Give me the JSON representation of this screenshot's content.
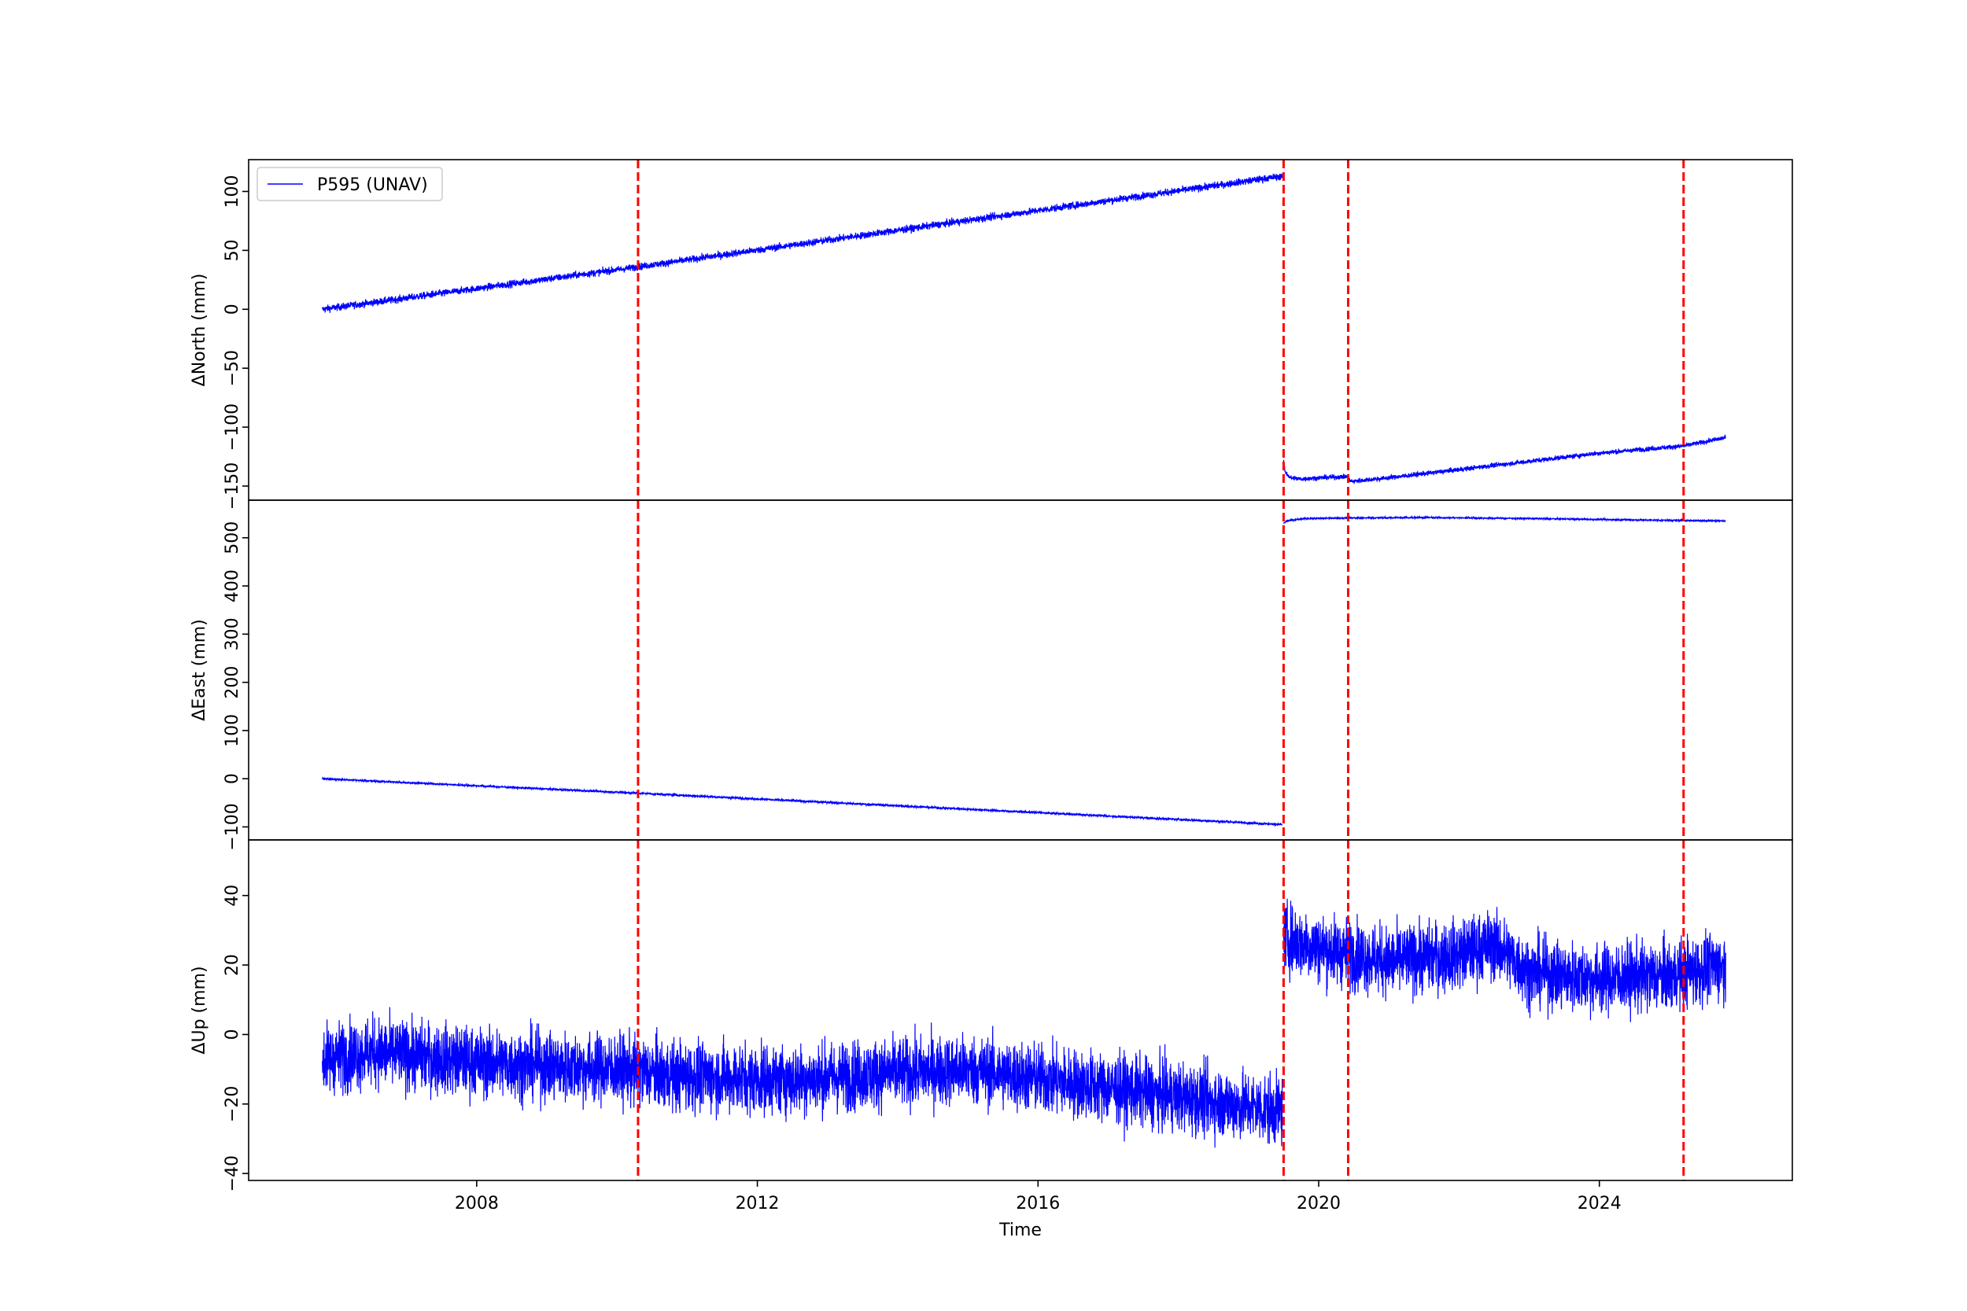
{
  "chart_data": {
    "type": "line",
    "xlabel": "Time",
    "x_ticks": [
      2008,
      2012,
      2016,
      2020,
      2024
    ],
    "xlim": [
      2004.75,
      2026.75
    ],
    "shared_x": true,
    "legend": {
      "location": "top-left",
      "entries": [
        "P595 (UNAV)"
      ]
    },
    "series_color": "#0000ff",
    "event_lines": {
      "color": "#ff0000",
      "style": "dashed",
      "x": [
        2010.3,
        2019.5,
        2020.42,
        2025.2
      ]
    },
    "panels": [
      {
        "ylabel": "ΔNorth (mm)",
        "ylim": [
          -162,
          127
        ],
        "y_ticks": [
          -150,
          -100,
          -50,
          0,
          50,
          100
        ],
        "series": [
          {
            "name": "P595 (UNAV)",
            "segments": [
              {
                "x": [
                  2005.8,
                  2010.3,
                  2019.48
                ],
                "y": [
                  0,
                  36,
                  113
                ],
                "noise": 1.5
              },
              {
                "x": [
                  2019.5,
                  2019.52,
                  2019.6,
                  2019.75,
                  2020.0,
                  2020.42
                ],
                "y": [
                  -130,
                  -138,
                  -143,
                  -144,
                  -143,
                  -142
                ],
                "noise": 1.0
              },
              {
                "x": [
                  2020.42,
                  2020.48,
                  2021.0,
                  2022.0,
                  2023.0,
                  2024.0,
                  2025.2,
                  2025.8
                ],
                "y": [
                  -145,
                  -146,
                  -143,
                  -136,
                  -129,
                  -122,
                  -116,
                  -109
                ],
                "noise": 1.0
              }
            ]
          }
        ]
      },
      {
        "ylabel": "ΔEast (mm)",
        "ylim": [
          -127,
          578
        ],
        "y_ticks": [
          -100,
          0,
          100,
          200,
          300,
          400,
          500
        ],
        "series": [
          {
            "name": "P595 (UNAV)",
            "segments": [
              {
                "x": [
                  2005.8,
                  2010.3,
                  2019.48
                ],
                "y": [
                  0,
                  -30,
                  -95
                ],
                "noise": 1.0
              },
              {
                "x": [
                  2019.5,
                  2019.55,
                  2019.8,
                  2020.4,
                  2021.5,
                  2023.0,
                  2024.5,
                  2025.8
                ],
                "y": [
                  530,
                  535,
                  540,
                  541,
                  542,
                  540,
                  537,
                  535
                ],
                "noise": 0.8
              }
            ]
          }
        ]
      },
      {
        "ylabel": "ΔUp (mm)",
        "ylim": [
          -42,
          56
        ],
        "y_ticks": [
          -40,
          -20,
          0,
          20,
          40
        ],
        "series": [
          {
            "name": "P595 (UNAV)",
            "segments": [
              {
                "x": [
                  2005.8,
                  2006.5,
                  2008.0,
                  2010.0,
                  2011.0,
                  2012.5,
                  2014.0,
                  2015.0,
                  2016.5,
                  2018.0,
                  2019.48
                ],
                "y": [
                  -7,
                  -5,
                  -8,
                  -10,
                  -12,
                  -13,
                  -11,
                  -10,
                  -14,
                  -18,
                  -22
                ],
                "noise": 5
              },
              {
                "x": [
                  2019.5,
                  2020.0,
                  2021.0,
                  2022.0,
                  2022.5,
                  2023.0,
                  2024.0,
                  2025.0,
                  2025.8
                ],
                "y": [
                  28,
                  25,
                  21,
                  23,
                  26,
                  18,
                  16,
                  17,
                  20
                ],
                "noise": 5
              }
            ]
          }
        ]
      }
    ]
  }
}
